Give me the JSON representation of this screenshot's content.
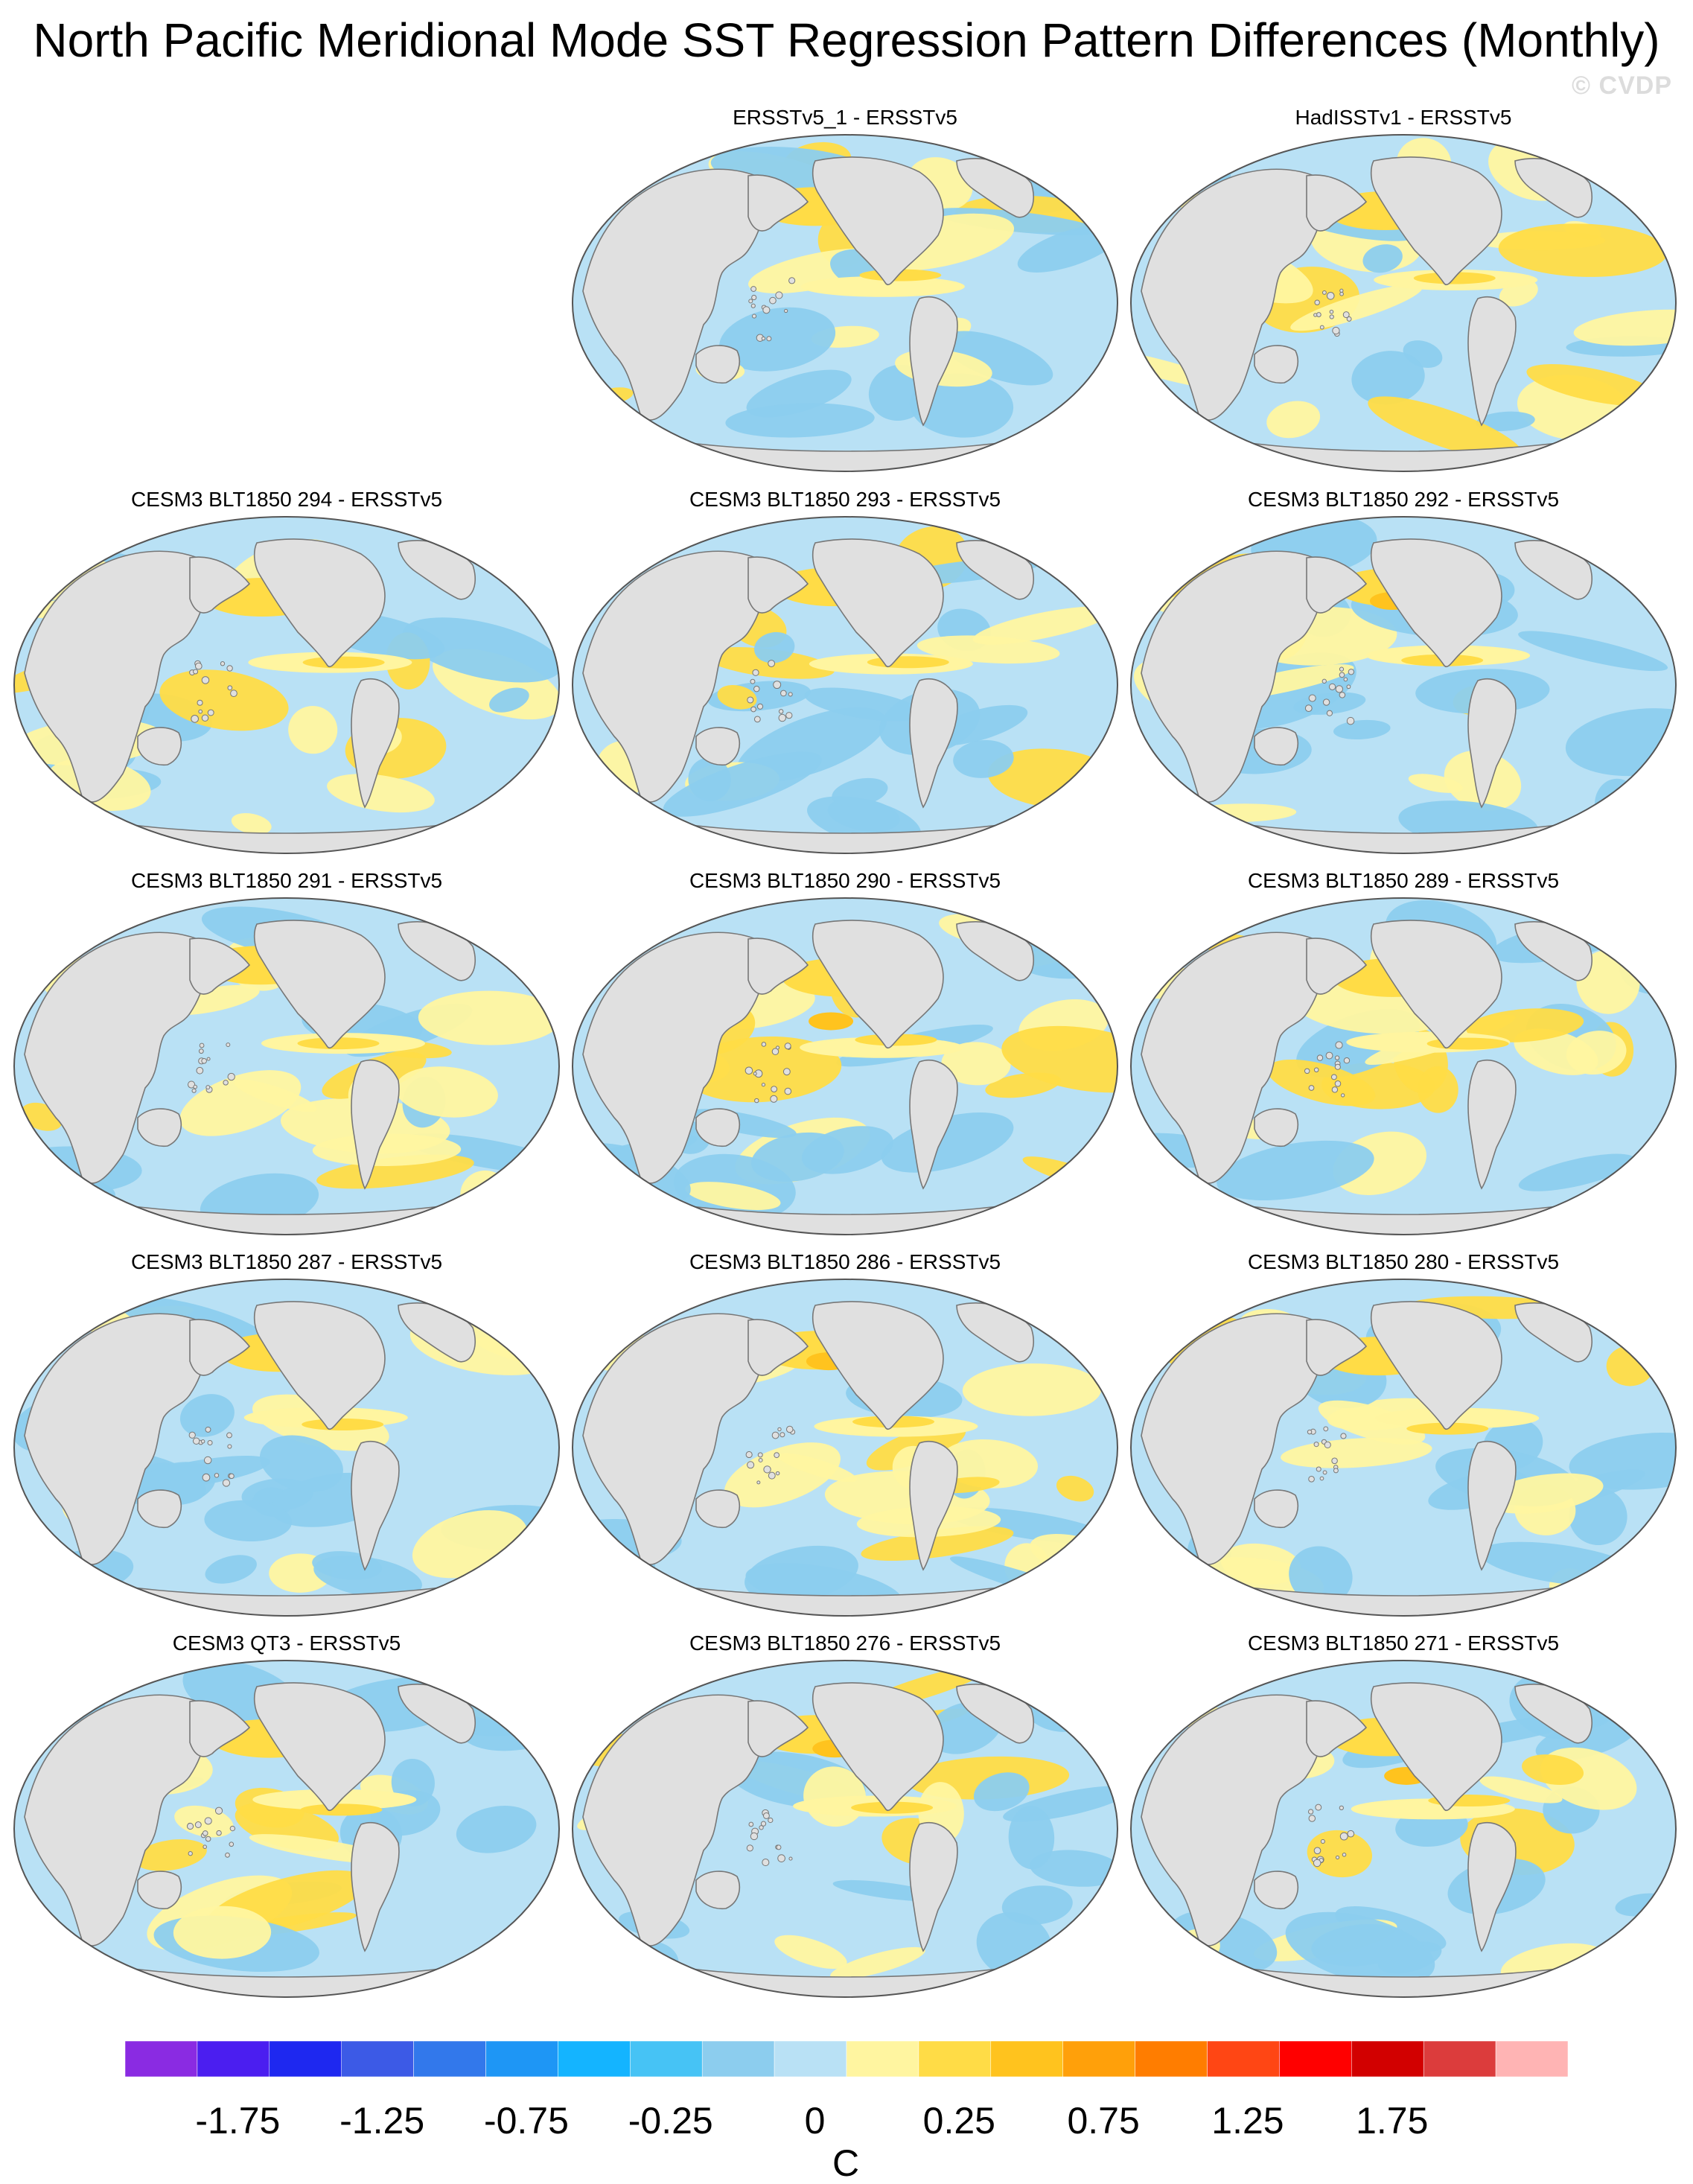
{
  "title": "North Pacific Meridional Mode SST Regression Pattern Differences (Monthly)",
  "watermark": "© CVDP",
  "panels": [
    {
      "label": "ERSSTv5_1 - ERSSTv5",
      "col": 1,
      "row": 0
    },
    {
      "label": "HadISSTv1 - ERSSTv5",
      "col": 2,
      "row": 0
    },
    {
      "label": "CESM3 BLT1850 294 - ERSSTv5",
      "col": 0,
      "row": 1
    },
    {
      "label": "CESM3 BLT1850 293 - ERSSTv5",
      "col": 1,
      "row": 1
    },
    {
      "label": "CESM3 BLT1850 292 - ERSSTv5",
      "col": 2,
      "row": 1
    },
    {
      "label": "CESM3 BLT1850 291 - ERSSTv5",
      "col": 0,
      "row": 2
    },
    {
      "label": "CESM3 BLT1850 290 - ERSSTv5",
      "col": 1,
      "row": 2
    },
    {
      "label": "CESM3 BLT1850 289 - ERSSTv5",
      "col": 2,
      "row": 2
    },
    {
      "label": "CESM3 BLT1850 287 - ERSSTv5",
      "col": 0,
      "row": 3
    },
    {
      "label": "CESM3 BLT1850 286 - ERSSTv5",
      "col": 1,
      "row": 3
    },
    {
      "label": "CESM3 BLT1850 280 - ERSSTv5",
      "col": 2,
      "row": 3
    },
    {
      "label": "CESM3 QT3 - ERSSTv5",
      "col": 0,
      "row": 4
    },
    {
      "label": "CESM3 BLT1850 276 - ERSSTv5",
      "col": 1,
      "row": 4
    },
    {
      "label": "CESM3 BLT1850 271 - ERSSTv5",
      "col": 2,
      "row": 4
    }
  ],
  "colorbar": {
    "unit": "C",
    "colors": [
      "#8a2be2",
      "#4b1ef0",
      "#1e28f0",
      "#3c5ae6",
      "#3278eb",
      "#1e96f5",
      "#14b4ff",
      "#46c3f5",
      "#8ccdee",
      "#b9e1f5",
      "#fff5a0",
      "#ffdc46",
      "#ffc31e",
      "#ffa00a",
      "#ff7d00",
      "#ff4614",
      "#ff0000",
      "#d20000",
      "#dc3c3c",
      "#ffb4b4"
    ],
    "tick_labels": [
      "-1.75",
      "-1.25",
      "-0.75",
      "-0.25",
      "0",
      "0.25",
      "0.75",
      "1.25",
      "1.75"
    ],
    "tick_boundaries": [
      2,
      4,
      6,
      8,
      10,
      12,
      14,
      16,
      18
    ]
  },
  "legend_colors": {
    "land": "#e0e0e0",
    "coast": "#777777",
    "ocean_neg": "#b9e1f5",
    "ocean_pos": "#fff5a0",
    "mid_neg": "#8ccdee",
    "mid_pos": "#ffdc46",
    "strong_pos": "#ffc31e"
  }
}
